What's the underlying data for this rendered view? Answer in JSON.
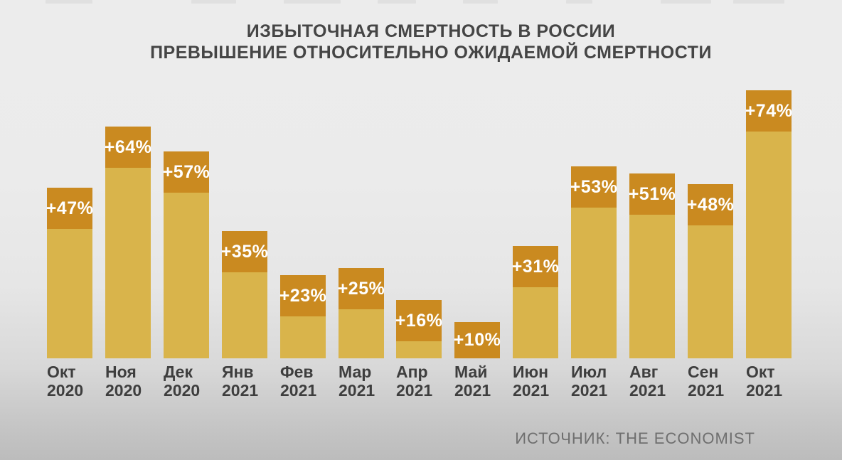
{
  "title": {
    "line1": "ИЗБЫТОЧНАЯ СМЕРТНОСТЬ В РОССИИ",
    "line2": "ПРЕВЫШЕНИЕ ОТНОСИТЕЛЬНО ОЖИДАЕМОЙ СМЕРТНОСТИ"
  },
  "source": "ИСТОЧНИК: THE ECONOMIST",
  "chart_data": {
    "type": "bar",
    "title": "ИЗБЫТОЧНАЯ СМЕРТНОСТЬ В РОССИИ",
    "subtitle": "ПРЕВЫШЕНИЕ ОТНОСИТЕЛЬНО ОЖИДАЕМОЙ СМЕРТНОСТИ",
    "xlabel": "",
    "ylabel": "",
    "ylim": [
      0,
      80
    ],
    "grid": false,
    "legend": "none",
    "unit": "%",
    "categories": [
      "Окт 2020",
      "Ноя 2020",
      "Дек 2020",
      "Янв 2021",
      "Фев 2021",
      "Мар 2021",
      "Апр 2021",
      "Май 2021",
      "Июн 2021",
      "Июл 2021",
      "Авг 2021",
      "Сен 2021",
      "Окт 2021"
    ],
    "values": [
      47,
      64,
      57,
      35,
      23,
      25,
      16,
      10,
      31,
      53,
      51,
      48,
      74
    ],
    "points": [
      {
        "month": "Окт",
        "year": "2020",
        "value": 47,
        "label": "+47%"
      },
      {
        "month": "Ноя",
        "year": "2020",
        "value": 64,
        "label": "+64%"
      },
      {
        "month": "Дек",
        "year": "2020",
        "value": 57,
        "label": "+57%"
      },
      {
        "month": "Янв",
        "year": "2021",
        "value": 35,
        "label": "+35%"
      },
      {
        "month": "Фев",
        "year": "2021",
        "value": 23,
        "label": "+23%"
      },
      {
        "month": "Мар",
        "year": "2021",
        "value": 25,
        "label": "+25%"
      },
      {
        "month": "Апр",
        "year": "2021",
        "value": 16,
        "label": "+16%"
      },
      {
        "month": "Май",
        "year": "2021",
        "value": 10,
        "label": "+10%"
      },
      {
        "month": "Июн",
        "year": "2021",
        "value": 31,
        "label": "+31%"
      },
      {
        "month": "Июл",
        "year": "2021",
        "value": 53,
        "label": "+53%"
      },
      {
        "month": "Авг",
        "year": "2021",
        "value": 51,
        "label": "+51%"
      },
      {
        "month": "Сен",
        "year": "2021",
        "value": 48,
        "label": "+48%"
      },
      {
        "month": "Окт",
        "year": "2021",
        "value": 74,
        "label": "+74%"
      }
    ],
    "colors": {
      "bar_body": "#D9B44B",
      "bar_cap": "#CA8A20",
      "bar_label_text": "#FFFFFF",
      "title_text": "#454545",
      "tick_text": "#3E3E3E",
      "source_text": "#6F6F6F",
      "background_top": "#ECECEC",
      "background_bottom": "#BCBCBC"
    }
  }
}
